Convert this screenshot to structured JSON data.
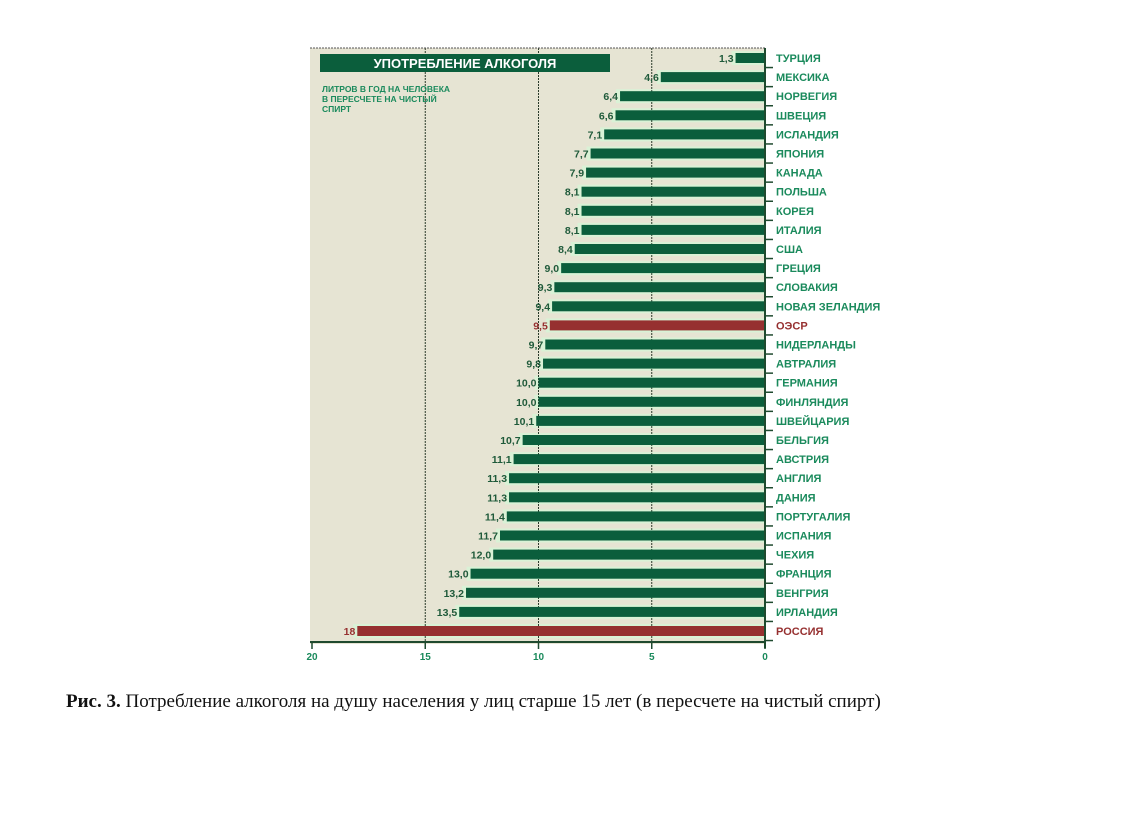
{
  "chart_data": {
    "type": "bar",
    "orientation": "horizontal",
    "title": "УПОТРЕБЛЕНИЕ АЛКОГОЛЯ",
    "subtitle_lines": [
      "ЛИТРОВ В ГОД НА ЧЕЛОВЕКА",
      "В ПЕРЕСЧЕТЕ НА ЧИСТЫЙ",
      "СПИРТ"
    ],
    "categories": [
      "ТУРЦИЯ",
      "МЕКСИКА",
      "НОРВЕГИЯ",
      "ШВЕЦИЯ",
      "ИСЛАНДИЯ",
      "ЯПОНИЯ",
      "КАНАДА",
      "ПОЛЬША",
      "КОРЕЯ",
      "ИТАЛИЯ",
      "США",
      "ГРЕЦИЯ",
      "СЛОВАКИЯ",
      "НОВАЯ ЗЕЛАНДИЯ",
      "ОЭСР",
      "НИДЕРЛАНДЫ",
      "АВТРАЛИЯ",
      "ГЕРМАНИЯ",
      "ФИНЛЯНДИЯ",
      "ШВЕЙЦАРИЯ",
      "БЕЛЬГИЯ",
      "АВСТРИЯ",
      "АНГЛИЯ",
      "ДАНИЯ",
      "ПОРТУГАЛИЯ",
      "ИСПАНИЯ",
      "ЧЕХИЯ",
      "ФРАНЦИЯ",
      "ВЕНГРИЯ",
      "ИРЛАНДИЯ",
      "РОССИЯ"
    ],
    "values": [
      1.3,
      4.6,
      6.4,
      6.6,
      7.1,
      7.7,
      7.9,
      8.1,
      8.1,
      8.1,
      8.4,
      9.0,
      9.3,
      9.4,
      9.5,
      9.7,
      9.8,
      10.0,
      10.0,
      10.1,
      10.7,
      11.1,
      11.3,
      11.3,
      11.4,
      11.7,
      12.0,
      13.0,
      13.2,
      13.5,
      18
    ],
    "value_labels": [
      "1,3",
      "4,6",
      "6,4",
      "6,6",
      "7,1",
      "7,7",
      "7,9",
      "8,1",
      "8,1",
      "8,1",
      "8,4",
      "9,0",
      "9,3",
      "9,4",
      "9,5",
      "9,7",
      "9,8",
      "10,0",
      "10,0",
      "10,1",
      "10,7",
      "11,1",
      "11,3",
      "11,3",
      "11,4",
      "11,7",
      "12,0",
      "13,0",
      "13,2",
      "13,5",
      "18"
    ],
    "highlighted": [
      "ОЭСР",
      "РОССИЯ"
    ],
    "xlim": [
      20,
      0
    ],
    "x_ticks": [
      20,
      15,
      10,
      5,
      0
    ],
    "x_tick_labels": [
      "20",
      "15",
      "10",
      "5",
      "0"
    ],
    "xlabel": "",
    "ylabel": "",
    "grid": true,
    "colors": {
      "bar": "#0b5e3c",
      "highlight": "#963030",
      "label": "#1a8a5c",
      "value_text": "#1f5a3a",
      "panel_bg": "#e6e4d3",
      "title_bg": "#0b5e3c",
      "title_text": "#ffffff"
    }
  },
  "caption": {
    "prefix": "Рис. 3.",
    "text": " Потребление алкоголя на душу населения у лиц старше 15 лет (в пересчете на чистый спирт)"
  }
}
